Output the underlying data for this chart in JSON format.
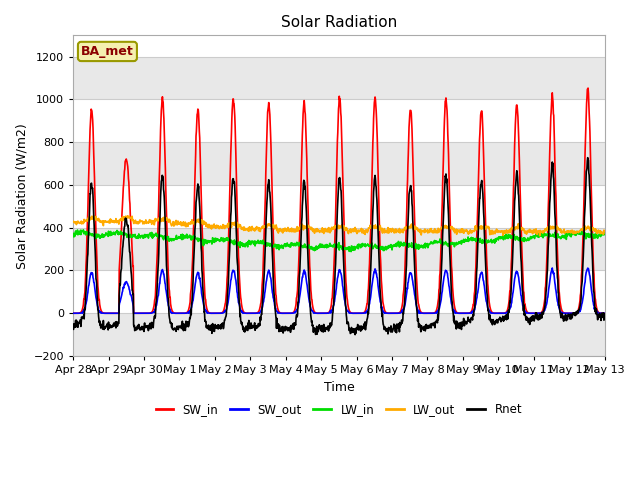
{
  "title": "Solar Radiation",
  "xlabel": "Time",
  "ylabel": "Solar Radiation (W/m2)",
  "station_label": "BA_met",
  "ylim": [
    -200,
    1300
  ],
  "yticks": [
    -200,
    0,
    200,
    400,
    600,
    800,
    1000,
    1200
  ],
  "series_colors": {
    "SW_in": "#ff0000",
    "SW_out": "#0000ff",
    "LW_in": "#00dd00",
    "LW_out": "#ffaa00",
    "Rnet": "#000000"
  },
  "series_lw": 1.2,
  "legend_labels": [
    "SW_in",
    "SW_out",
    "LW_in",
    "LW_out",
    "Rnet"
  ],
  "legend_colors": [
    "#ff0000",
    "#0000ff",
    "#00dd00",
    "#ffaa00",
    "#000000"
  ],
  "xtick_labels": [
    "Apr 28",
    "Apr 29",
    "Apr 30",
    "May 1",
    "May 2",
    "May 3",
    "May 4",
    "May 5",
    "May 6",
    "May 7",
    "May 8",
    "May 9",
    "May 10",
    "May 11",
    "May 12",
    "May 13"
  ],
  "figsize": [
    6.4,
    4.8
  ],
  "dpi": 100,
  "plot_bg_color": "#ffffff",
  "fig_bg_color": "#ffffff",
  "band_color": "#e8e8e8",
  "grid_color": "#cccccc"
}
